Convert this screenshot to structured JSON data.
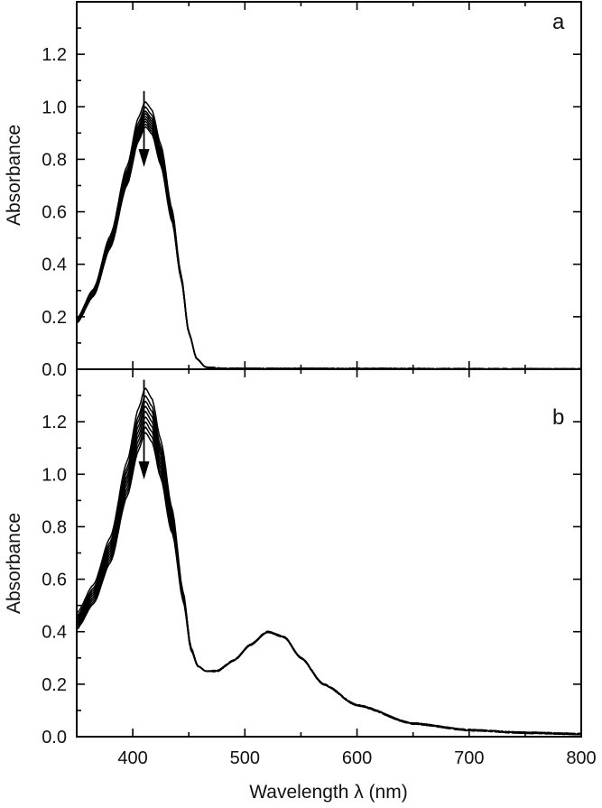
{
  "figure": {
    "xlabel": "Wavelength λ (nm)",
    "ylabel": "Absorbance"
  },
  "chart_data": [
    {
      "type": "line",
      "panel_label": "a",
      "xlabel": "Wavelength λ (nm)",
      "ylabel": "Absorbance",
      "xlim": [
        350,
        800
      ],
      "ylim": [
        0.0,
        1.4
      ],
      "x_ticks": [
        400,
        500,
        600,
        700,
        800
      ],
      "y_ticks": [
        "0.0",
        "0.2",
        "0.4",
        "0.6",
        "0.8",
        "1.0",
        "1.2"
      ],
      "grid": false,
      "peak_wavelength": 411,
      "arrow": {
        "x": 410,
        "from": 1.06,
        "to": 0.77,
        "direction": "down"
      },
      "shape": [
        [
          350,
          0.19
        ],
        [
          365,
          0.3
        ],
        [
          380,
          0.5
        ],
        [
          395,
          0.76
        ],
        [
          405,
          0.94
        ],
        [
          411,
          1.0
        ],
        [
          417,
          0.97
        ],
        [
          425,
          0.84
        ],
        [
          435,
          0.6
        ],
        [
          443,
          0.36
        ],
        [
          450,
          0.14
        ],
        [
          457,
          0.04
        ],
        [
          465,
          0.008
        ],
        [
          480,
          0.002
        ],
        [
          800,
          0.0
        ]
      ],
      "series": [
        {
          "peak": 1.02
        },
        {
          "peak": 1.0
        },
        {
          "peak": 0.985
        },
        {
          "peak": 0.975
        },
        {
          "peak": 0.965
        },
        {
          "peak": 0.955
        },
        {
          "peak": 0.945
        },
        {
          "peak": 0.935
        },
        {
          "peak": 0.925
        }
      ]
    },
    {
      "type": "line",
      "panel_label": "b",
      "xlabel": "Wavelength λ (nm)",
      "ylabel": "Absorbance",
      "xlim": [
        350,
        800
      ],
      "ylim": [
        0.0,
        1.4
      ],
      "x_ticks": [
        400,
        500,
        600,
        700,
        800
      ],
      "y_ticks": [
        "0.0",
        "0.2",
        "0.4",
        "0.6",
        "0.8",
        "1.0",
        "1.2"
      ],
      "grid": false,
      "peak_wavelength": 411,
      "arrow": {
        "x": 410,
        "from": 1.36,
        "to": 0.98,
        "direction": "down"
      },
      "shape": [
        [
          350,
          0.47
        ],
        [
          365,
          0.58
        ],
        [
          380,
          0.76
        ],
        [
          395,
          1.05
        ],
        [
          405,
          1.25
        ],
        [
          411,
          1.33
        ],
        [
          417,
          1.29
        ],
        [
          425,
          1.13
        ],
        [
          435,
          0.87
        ],
        [
          445,
          0.55
        ],
        [
          452,
          0.34
        ],
        [
          458,
          0.27
        ],
        [
          465,
          0.25
        ],
        [
          475,
          0.25
        ],
        [
          490,
          0.29
        ],
        [
          505,
          0.35
        ],
        [
          520,
          0.4
        ],
        [
          535,
          0.38
        ],
        [
          550,
          0.3
        ],
        [
          570,
          0.2
        ],
        [
          600,
          0.12
        ],
        [
          650,
          0.05
        ],
        [
          700,
          0.025
        ],
        [
          750,
          0.015
        ],
        [
          800,
          0.01
        ]
      ],
      "series": [
        {
          "peak": 1.33
        },
        {
          "peak": 1.3
        },
        {
          "peak": 1.28
        },
        {
          "peak": 1.26
        },
        {
          "peak": 1.24
        },
        {
          "peak": 1.22
        },
        {
          "peak": 1.2
        },
        {
          "peak": 1.18
        },
        {
          "peak": 1.16
        }
      ]
    }
  ]
}
